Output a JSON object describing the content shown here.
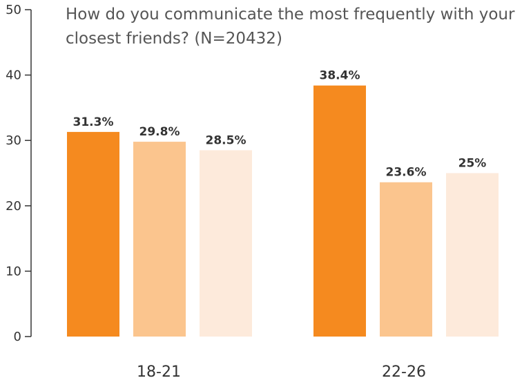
{
  "chart_data": {
    "type": "bar",
    "title": "How do you communicate the most frequently with your closest friends? (N=20432)",
    "xlabel": "",
    "ylabel": "",
    "ylim": [
      0,
      50
    ],
    "yticks": [
      0,
      10,
      20,
      30,
      40,
      50
    ],
    "grid": false,
    "legend": "none",
    "categories": [
      "18-21",
      "22-26"
    ],
    "series": [
      {
        "values": [
          31.3,
          38.4
        ],
        "labels": [
          "31.3%",
          "38.4%"
        ],
        "color": "#f58a1f"
      },
      {
        "values": [
          29.8,
          23.6
        ],
        "labels": [
          "29.8%",
          "23.6%"
        ],
        "color": "#fbc58e"
      },
      {
        "values": [
          28.5,
          25
        ],
        "labels": [
          "28.5%",
          "25%"
        ],
        "color": "#fdeadb"
      }
    ]
  }
}
